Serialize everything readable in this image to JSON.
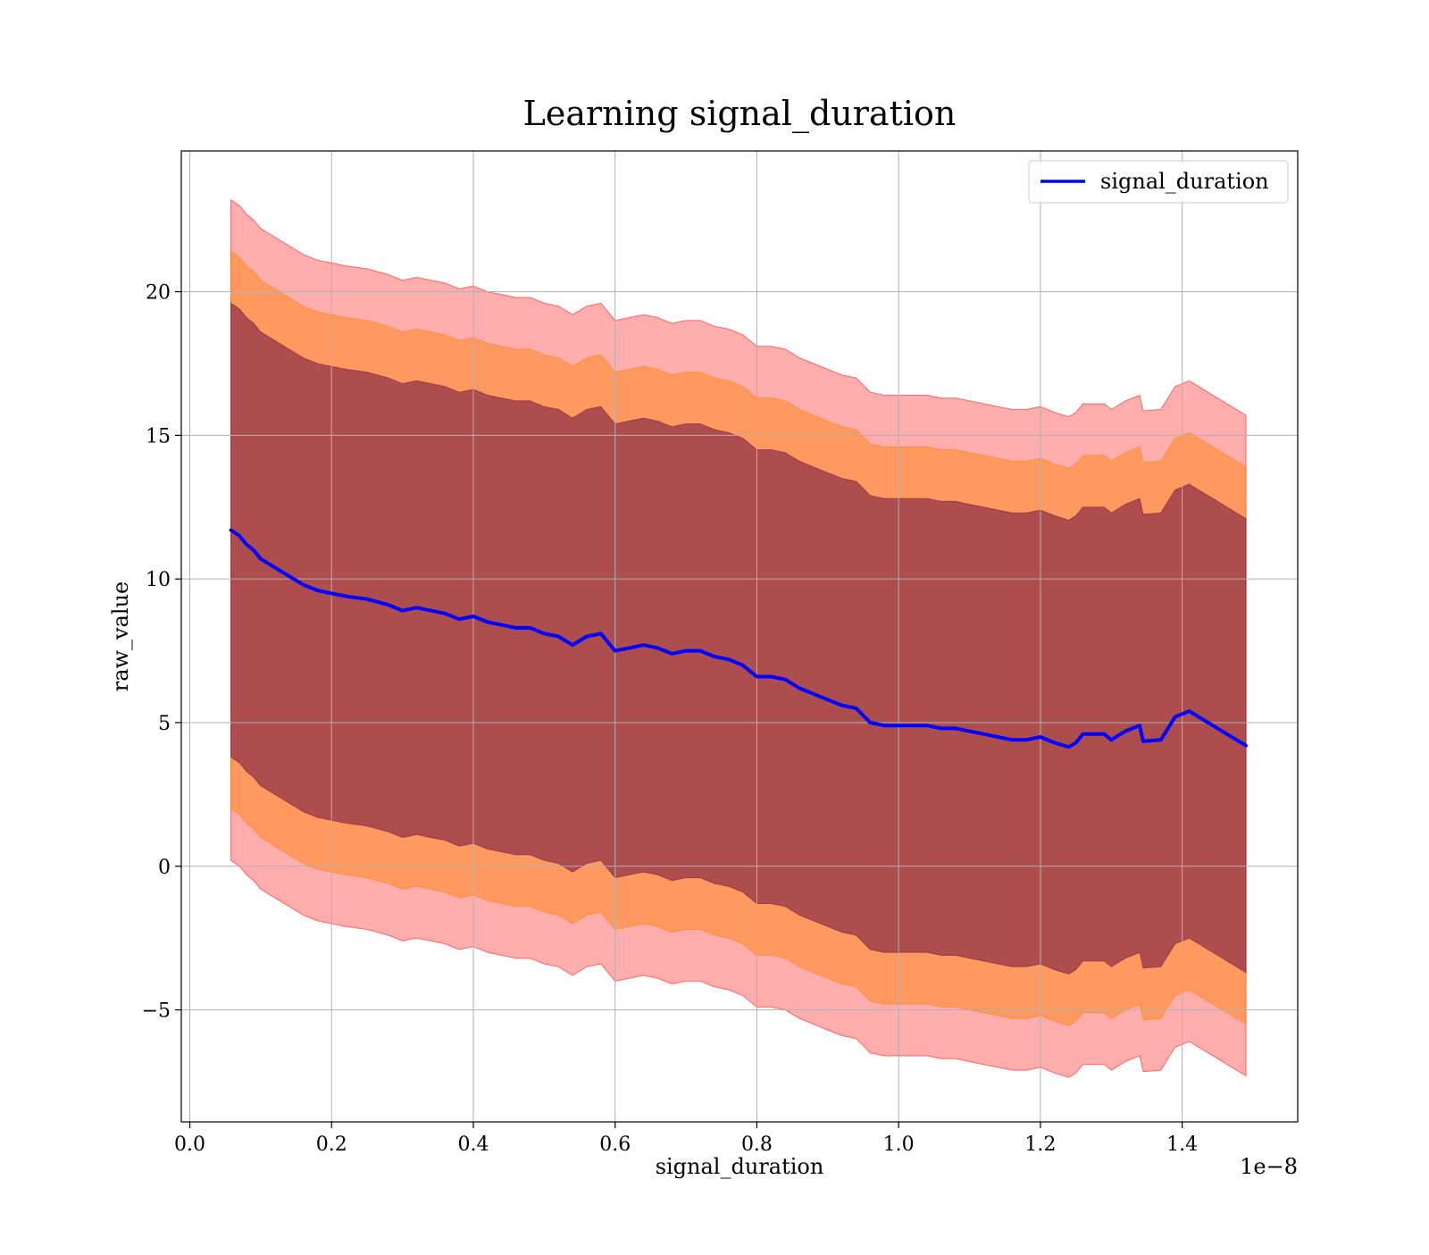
{
  "chart_data": {
    "type": "line",
    "title": "Learning signal_duration",
    "xlabel": "signal_duration",
    "ylabel": "raw_value",
    "x_offset_label": "1e−8",
    "x_axis_multiplier": 1e-08,
    "xlim": [
      -0.012,
      1.563
    ],
    "ylim": [
      -8.9,
      24.9
    ],
    "x_ticks": [
      0.0,
      0.2,
      0.4,
      0.6,
      0.8,
      1.0,
      1.2,
      1.4
    ],
    "x_tick_labels": [
      "0.0",
      "0.2",
      "0.4",
      "0.6",
      "0.8",
      "1.0",
      "1.2",
      "1.4"
    ],
    "y_ticks": [
      -5,
      0,
      5,
      10,
      15,
      20
    ],
    "y_tick_labels": [
      "−5",
      "0",
      "5",
      "10",
      "15",
      "20"
    ],
    "grid": true,
    "legend": {
      "placement": "top-right",
      "entries": [
        "signal_duration"
      ]
    },
    "colors": {
      "line": "#0000ff",
      "band_outer": "#ff0000",
      "band_middle": "#ff8000",
      "band_inner": "#6b0f3f",
      "grid": "#b0b0b0"
    },
    "series": [
      {
        "name": "signal_duration",
        "x": [
          0.058,
          0.07,
          0.08,
          0.09,
          0.1,
          0.12,
          0.14,
          0.16,
          0.18,
          0.2,
          0.22,
          0.25,
          0.28,
          0.3,
          0.32,
          0.34,
          0.36,
          0.38,
          0.4,
          0.42,
          0.44,
          0.46,
          0.48,
          0.5,
          0.52,
          0.54,
          0.56,
          0.58,
          0.6,
          0.62,
          0.64,
          0.66,
          0.68,
          0.7,
          0.72,
          0.74,
          0.76,
          0.78,
          0.8,
          0.82,
          0.84,
          0.86,
          0.88,
          0.9,
          0.92,
          0.94,
          0.96,
          0.98,
          1.0,
          1.02,
          1.04,
          1.06,
          1.08,
          1.1,
          1.12,
          1.14,
          1.16,
          1.18,
          1.2,
          1.22,
          1.24,
          1.25,
          1.26,
          1.27,
          1.29,
          1.3,
          1.32,
          1.34,
          1.345,
          1.37,
          1.39,
          1.41,
          1.43,
          1.45,
          1.47,
          1.49
        ],
        "values": [
          11.7,
          11.5,
          11.2,
          11.0,
          10.7,
          10.4,
          10.1,
          9.8,
          9.6,
          9.5,
          9.4,
          9.3,
          9.1,
          8.9,
          9.0,
          8.9,
          8.8,
          8.6,
          8.7,
          8.5,
          8.4,
          8.3,
          8.3,
          8.1,
          8.0,
          7.7,
          8.0,
          8.1,
          7.5,
          7.6,
          7.7,
          7.6,
          7.4,
          7.5,
          7.5,
          7.3,
          7.2,
          7.0,
          6.6,
          6.6,
          6.5,
          6.2,
          6.0,
          5.8,
          5.6,
          5.5,
          5.0,
          4.9,
          4.9,
          4.9,
          4.9,
          4.8,
          4.8,
          4.7,
          4.6,
          4.5,
          4.4,
          4.4,
          4.5,
          4.3,
          4.15,
          4.3,
          4.6,
          4.6,
          4.6,
          4.4,
          4.7,
          4.9,
          4.35,
          4.4,
          5.2,
          5.4,
          5.1,
          4.8,
          4.5,
          4.2
        ]
      }
    ],
    "bands": [
      {
        "name": "outer",
        "half_width": 11.5
      },
      {
        "name": "middle",
        "half_width": 9.7
      },
      {
        "name": "inner",
        "half_width": 7.9
      }
    ]
  }
}
